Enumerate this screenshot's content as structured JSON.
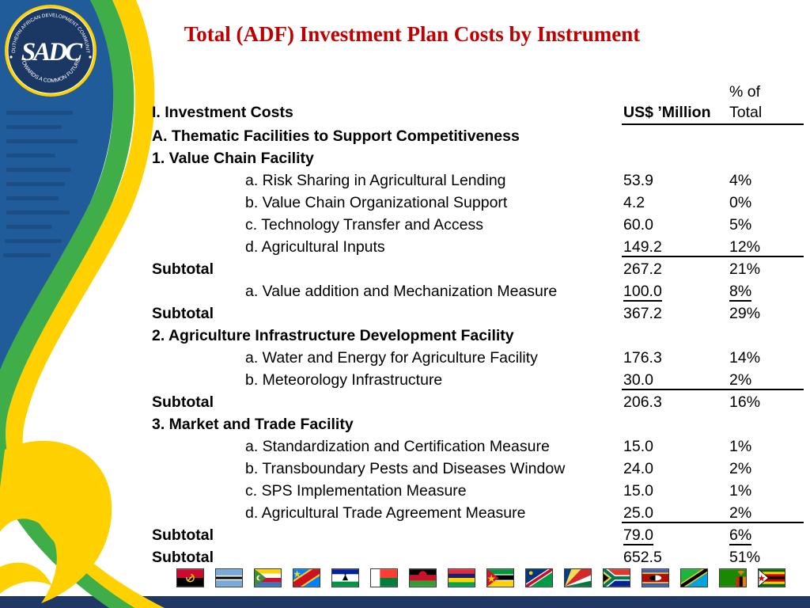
{
  "slide": {
    "title": "Total (ADF) Investment Plan Costs by Instrument"
  },
  "logo": {
    "org": "SADC",
    "ring_top": "SOUTHERN AFRICAN DEVELOPMENT COMMUNITY",
    "ring_bottom": "TOWARDS A COMMON FUTURE"
  },
  "table": {
    "header": {
      "col1": "I. Investment Costs",
      "col2": "US$ ’Million",
      "col3_line1": "% of",
      "col3_line2": "Total"
    },
    "rows": [
      {
        "label": "A. Thematic Facilities to Support Competitiveness",
        "value": "",
        "pct": "",
        "style": "section"
      },
      {
        "label": "1. Value Chain Facility",
        "value": "",
        "pct": "",
        "style": "section"
      },
      {
        "label": "a. Risk Sharing in Agricultural Lending",
        "value": "53.9",
        "pct": "4%",
        "style": "item"
      },
      {
        "label": "b. Value Chain Organizational Support",
        "value": "4.2",
        "pct": "0%",
        "style": "item"
      },
      {
        "label": "c. Technology Transfer and Access",
        "value": "60.0",
        "pct": "5%",
        "style": "item"
      },
      {
        "label": "d. Agricultural Inputs",
        "value": "149.2",
        "pct": "12%",
        "style": "item",
        "underline": "full"
      },
      {
        "label": "Subtotal",
        "value": "267.2",
        "pct": "21%",
        "style": "subtotal"
      },
      {
        "label": "a. Value addition and Mechanization Measure",
        "value": "100.0",
        "pct": "8%",
        "style": "item",
        "underline": "nums"
      },
      {
        "label": "Subtotal",
        "value": "367.2",
        "pct": "29%",
        "style": "subtotal"
      },
      {
        "label": "2. Agriculture Infrastructure Development Facility",
        "value": "",
        "pct": "",
        "style": "section"
      },
      {
        "label": "a. Water and Energy for Agriculture Facility",
        "value": "176.3",
        "pct": "14%",
        "style": "item"
      },
      {
        "label": "b. Meteorology Infrastructure",
        "value": "30.0",
        "pct": "2%",
        "style": "item",
        "underline": "full"
      },
      {
        "label": "Subtotal",
        "value": "206.3",
        "pct": "16%",
        "style": "subtotal"
      },
      {
        "label": "3. Market and Trade Facility",
        "value": "",
        "pct": "",
        "style": "section"
      },
      {
        "label": "a. Standardization and Certification Measure",
        "value": "15.0",
        "pct": "1%",
        "style": "item"
      },
      {
        "label": "b. Transboundary Pests and Diseases Window",
        "value": "24.0",
        "pct": "2%",
        "style": "item"
      },
      {
        "label": "c. SPS Implementation Measure",
        "value": "15.0",
        "pct": "1%",
        "style": "item"
      },
      {
        "label": "d. Agricultural Trade Agreement Measure",
        "value": "25.0",
        "pct": "2%",
        "style": "item",
        "underline": "full"
      },
      {
        "label": "Subtotal",
        "value": "79.0",
        "pct": "6%",
        "style": "subtotal",
        "underline": "nums"
      },
      {
        "label": "Subtotal",
        "value": "652.5",
        "pct": "51%",
        "style": "subtotal"
      }
    ]
  },
  "flags": [
    "Angola",
    "Botswana",
    "Comoros",
    "DR Congo",
    "Lesotho",
    "Madagascar",
    "Malawi",
    "Mauritius",
    "Mozambique",
    "Namibia",
    "Seychelles",
    "South Africa",
    "Eswatini",
    "Tanzania",
    "Zambia",
    "Zimbabwe"
  ],
  "colors": {
    "title_red": "#C00000",
    "navy_bar": "#203864",
    "swoosh_blue": "#1F5C99",
    "swoosh_green": "#3FAE49",
    "swoosh_yellow": "#FFD100",
    "logo_navy": "#1B3764"
  }
}
